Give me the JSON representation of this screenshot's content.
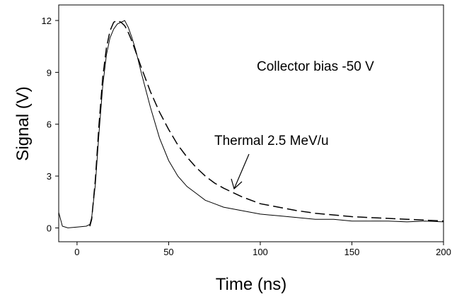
{
  "chart_data": {
    "type": "line",
    "x_label": "Time (ns)",
    "y_label": "Signal (V)",
    "annotations": [
      "Collector bias -50 V",
      "Thermal 2.5 MeV/u"
    ],
    "x": [
      -10,
      -8,
      -5,
      0,
      5,
      7,
      8,
      10,
      12,
      14,
      16,
      18,
      20,
      22,
      24,
      26,
      28,
      30,
      32,
      35,
      40,
      45,
      50,
      55,
      60,
      65,
      70,
      75,
      80,
      90,
      100,
      110,
      120,
      130,
      140,
      150,
      160,
      170,
      180,
      190,
      200
    ],
    "series": [
      {
        "color": "#000000",
        "dash": false,
        "values": [
          0.9,
          0.1,
          0.0,
          0.05,
          0.1,
          0.2,
          0.6,
          2.5,
          5.5,
          8.2,
          10.0,
          11.0,
          11.5,
          11.8,
          11.9,
          12.0,
          11.6,
          11.0,
          10.3,
          9.0,
          7.0,
          5.2,
          3.9,
          3.0,
          2.4,
          2.0,
          1.6,
          1.4,
          1.2,
          1.0,
          0.8,
          0.7,
          0.6,
          0.5,
          0.5,
          0.4,
          0.4,
          0.4,
          0.35,
          0.4,
          0.35
        ]
      },
      {
        "color": "#000000",
        "dash": true,
        "values": [
          null,
          null,
          null,
          null,
          null,
          0.1,
          0.5,
          2.8,
          6.0,
          8.7,
          10.4,
          11.4,
          11.9,
          12.0,
          11.9,
          11.7,
          11.3,
          10.8,
          10.2,
          9.3,
          7.9,
          6.7,
          5.7,
          4.8,
          4.1,
          3.5,
          3.0,
          2.6,
          2.3,
          1.8,
          1.4,
          1.2,
          1.0,
          0.85,
          0.75,
          0.65,
          0.6,
          0.55,
          0.5,
          0.45,
          0.4
        ]
      }
    ],
    "xlim": [
      -10,
      200
    ],
    "ylim": [
      -0.8,
      12.9
    ],
    "xticks": [
      0,
      50,
      100,
      150,
      200
    ],
    "yticks": [
      0,
      3,
      6,
      9,
      12
    ],
    "grid": false
  }
}
